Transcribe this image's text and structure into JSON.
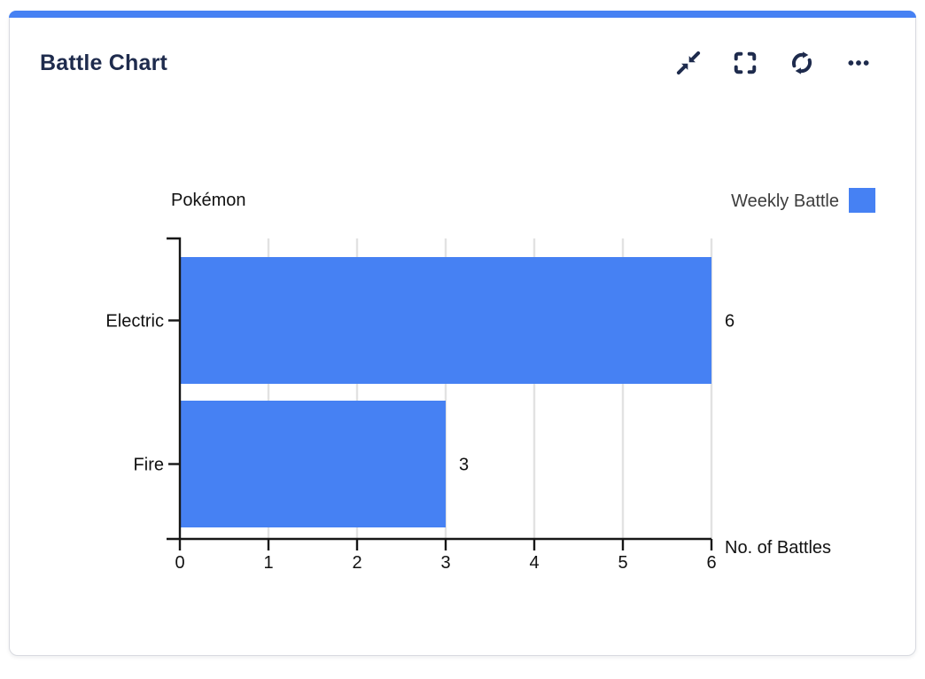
{
  "card": {
    "title": "Battle Chart",
    "accent_color": "#4681f3",
    "toolbar": {
      "buttons": [
        {
          "name": "collapse",
          "icon": "collapse-arrows-icon"
        },
        {
          "name": "fullscreen",
          "icon": "fullscreen-brackets-icon"
        },
        {
          "name": "refresh",
          "icon": "refresh-icon"
        },
        {
          "name": "more-options",
          "icon": "ellipsis-icon"
        }
      ]
    }
  },
  "colors": {
    "accent": "#4681f3",
    "bar": "#4681f3",
    "title_text": "#1e2b4d",
    "icon": "#1e2b4d",
    "axis": "#161616",
    "grid": "#e2e2e2",
    "chart_text": "#111111",
    "legend_text": "#3d3d3d",
    "card_border": "#d8dae0"
  },
  "chart_data": {
    "type": "bar",
    "orientation": "horizontal",
    "title": "",
    "ylabel": "Pokémon",
    "xlabel": "No. of Battles",
    "categories": [
      "Electric",
      "Fire"
    ],
    "series": [
      {
        "name": "Weekly Battle",
        "values": [
          6,
          3
        ],
        "color": "#4681f3"
      }
    ],
    "value_labels_shown": true,
    "xlim": [
      0,
      6
    ],
    "x_ticks": [
      0,
      1,
      2,
      3,
      4,
      5,
      6
    ],
    "grid": "vertical",
    "legend_position": "top-right"
  }
}
